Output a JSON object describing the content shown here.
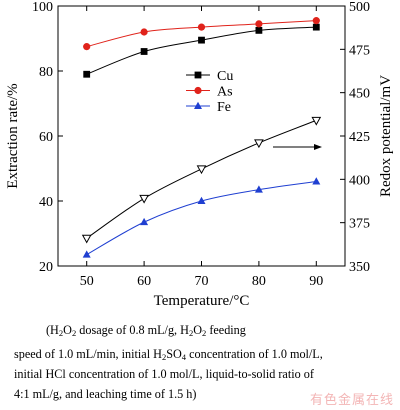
{
  "chart_data": {
    "type": "line",
    "xlabel": "Temperature/°C",
    "ylabel_left": "Extraction rate/%",
    "ylabel_right": "Redox potential/mV",
    "x": [
      50,
      60,
      70,
      80,
      90
    ],
    "xlim": [
      45,
      95
    ],
    "ylim_left": [
      20,
      100
    ],
    "ylim_right": [
      350,
      500
    ],
    "x_ticks": [
      "50",
      "60",
      "70",
      "80",
      "90"
    ],
    "y_ticks_left": [
      "20",
      "40",
      "60",
      "80",
      "100"
    ],
    "y_ticks_right": [
      "350",
      "375",
      "400",
      "425",
      "450",
      "475",
      "500"
    ],
    "legend": {
      "position": "right",
      "entries": [
        "Cu",
        "As",
        "Fe"
      ]
    },
    "series": [
      {
        "name": "Cu",
        "axis": "left",
        "color": "#000000",
        "marker": "square",
        "values": [
          79,
          86,
          89.5,
          92.5,
          93.5
        ]
      },
      {
        "name": "As",
        "axis": "left",
        "color": "#e0231b",
        "marker": "circle",
        "values": [
          87.5,
          92,
          93.5,
          94.5,
          95.5
        ]
      },
      {
        "name": "Fe",
        "axis": "left",
        "color": "#1f3fd1",
        "marker": "triangle-up",
        "values": [
          23.5,
          33.5,
          40,
          43.5,
          46
        ]
      },
      {
        "name": "",
        "axis": "right",
        "color": "#000000",
        "marker": "triangle-down-open",
        "values": [
          366,
          389,
          406,
          421,
          434
        ]
      }
    ],
    "annotation": "arrow pointing right to the redox potential axis"
  },
  "caption": {
    "line1_a": "(H",
    "line1_b": "O",
    "line1_c": " dosage of 0.8 mL/g, H",
    "line1_d": "O",
    "line1_e": " feeding",
    "line2_a": "speed of 1.0 mL/min, initial H",
    "line2_b": "SO",
    "line2_c": " concentration of 1.0 mol/L,",
    "line3": "initial HCl concentration of 1.0 mol/L, liquid-to-solid ratio of",
    "line4": "4:1 mL/g, and leaching time of 1.5 h)",
    "sub2": "2",
    "sub4": "4"
  },
  "watermark": "有色金属在线"
}
